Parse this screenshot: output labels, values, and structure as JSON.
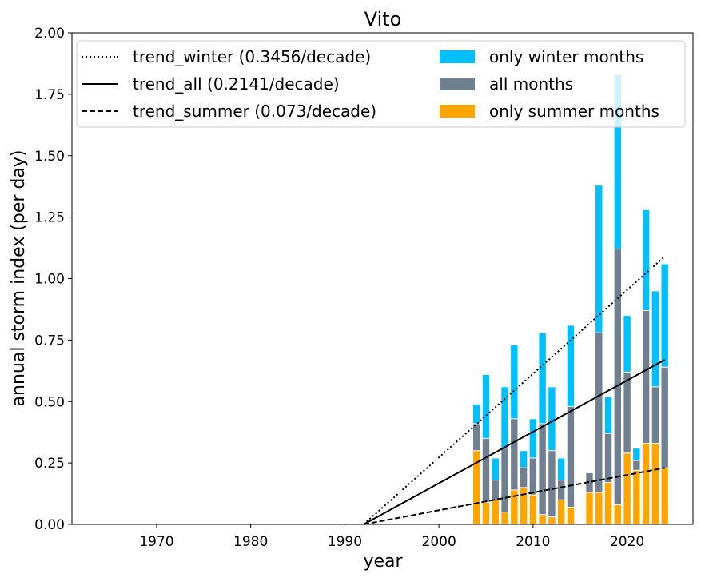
{
  "chart_data": {
    "type": "bar",
    "title": "Vito",
    "xlabel": "year",
    "ylabel": "annual storm index (per day)",
    "xlim": [
      1961,
      2027
    ],
    "ylim": [
      0,
      2.0
    ],
    "xticks": [
      1970,
      1980,
      1990,
      2000,
      2010,
      2020
    ],
    "yticks": [
      "0.00",
      "0.25",
      "0.50",
      "0.75",
      "1.00",
      "1.25",
      "1.50",
      "1.75",
      "2.00"
    ],
    "grid": false,
    "legend_position": "top",
    "years": [
      2004,
      2005,
      2006,
      2007,
      2008,
      2009,
      2010,
      2011,
      2012,
      2013,
      2014,
      2016,
      2017,
      2018,
      2019,
      2020,
      2021,
      2022,
      2023,
      2024
    ],
    "series": [
      {
        "name": "only winter months",
        "color": "#00bfff",
        "values": [
          0.49,
          0.61,
          0.27,
          0.56,
          0.73,
          0.3,
          0.43,
          0.78,
          0.56,
          0.27,
          0.81,
          0.0,
          1.38,
          0.52,
          1.83,
          0.85,
          0.31,
          1.28,
          0.95,
          1.06
        ]
      },
      {
        "name": "all months",
        "color": "#708090",
        "values": [
          0.41,
          0.35,
          0.18,
          0.31,
          0.43,
          0.23,
          0.27,
          0.41,
          0.3,
          0.18,
          0.48,
          0.21,
          0.78,
          0.37,
          1.12,
          0.62,
          0.26,
          0.87,
          0.56,
          0.64
        ]
      },
      {
        "name": "only summer months",
        "color": "#ffa500",
        "values": [
          0.3,
          0.09,
          0.1,
          0.05,
          0.14,
          0.15,
          0.12,
          0.04,
          0.03,
          0.1,
          0.07,
          0.13,
          0.13,
          0.17,
          0.08,
          0.29,
          0.22,
          0.33,
          0.33,
          0.23
        ]
      }
    ],
    "trends": [
      {
        "name": "trend_winter (0.3456/decade)",
        "style": "dotted",
        "x": [
          1992,
          2024
        ],
        "y": [
          0.0,
          1.09
        ]
      },
      {
        "name": "trend_all (0.2141/decade)",
        "style": "solid",
        "x": [
          1992,
          2024
        ],
        "y": [
          0.0,
          0.67
        ]
      },
      {
        "name": "trend_summer (0.073/decade)",
        "style": "dashed",
        "x": [
          1992,
          2024
        ],
        "y": [
          0.0,
          0.23
        ]
      }
    ]
  }
}
